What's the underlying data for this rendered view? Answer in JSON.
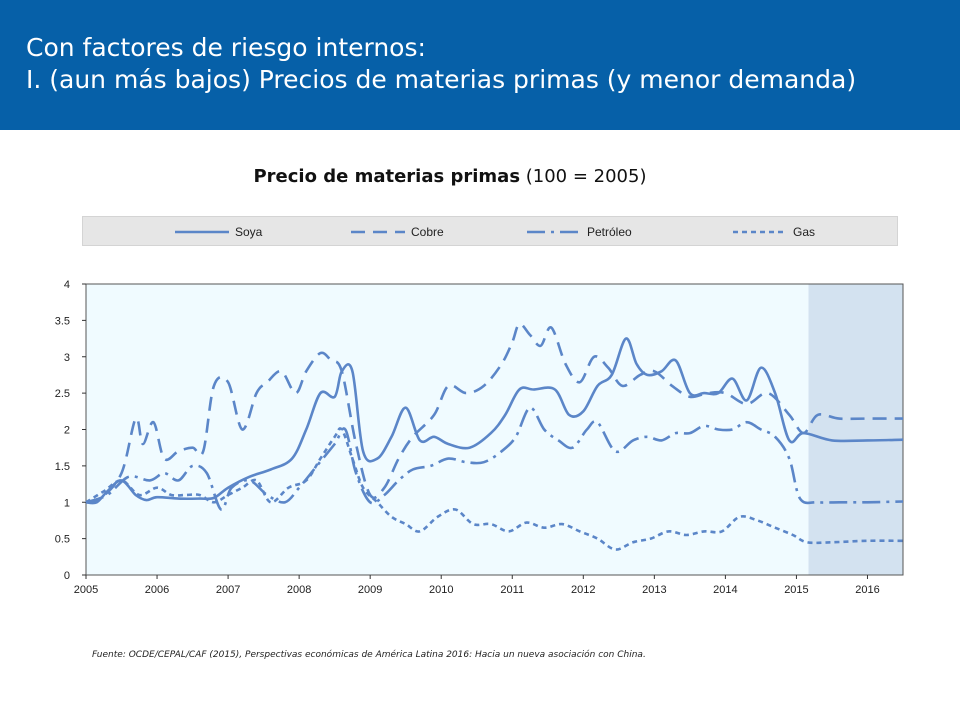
{
  "header": {
    "line1": "Con factores de riesgo internos:",
    "line2": "I. (aun más bajos) Precios de materias primas (y menor demanda)"
  },
  "chart_title": {
    "bold": "Precio de materias primas",
    "rest": " (100 = 2005)"
  },
  "source": "Fuente: OCDE/CEPAL/CAF (2015), Perspectivas económicas de América Latina 2016: Hacia un nueva asociación con China.",
  "colors": {
    "header_bg": "#0660a8",
    "series": "#5b86c8",
    "plot_bg": "#f0fbff",
    "projection_bg": "#d3e2f0"
  },
  "chart_data": {
    "type": "line",
    "title": "Precio de materias primas (100 = 2005)",
    "xlim": [
      2005,
      2016.5
    ],
    "ylim": [
      0,
      4
    ],
    "x_ticks": [
      "2005",
      "2006",
      "2007",
      "2008",
      "2009",
      "2010",
      "2011",
      "2012",
      "2013",
      "2014",
      "2015",
      "2016"
    ],
    "y_ticks": [
      "0",
      "0.5",
      "1",
      "1.5",
      "2",
      "2.5",
      "3",
      "3.5",
      "4"
    ],
    "projection_start": 2015.17,
    "legend_position": "top",
    "series": [
      {
        "name": "Soya",
        "style": "solid",
        "x": [
          2005,
          2005.15,
          2005.3,
          2005.5,
          2005.7,
          2005.85,
          2006,
          2006.3,
          2006.6,
          2006.8,
          2007,
          2007.3,
          2007.6,
          2007.9,
          2008.1,
          2008.3,
          2008.5,
          2008.6,
          2008.75,
          2008.9,
          2009.1,
          2009.3,
          2009.5,
          2009.7,
          2009.9,
          2010.1,
          2010.4,
          2010.7,
          2010.9,
          2011.1,
          2011.3,
          2011.6,
          2011.8,
          2012,
          2012.2,
          2012.4,
          2012.6,
          2012.75,
          2012.9,
          2013.1,
          2013.3,
          2013.5,
          2013.7,
          2013.9,
          2014.1,
          2014.3,
          2014.5,
          2014.7,
          2014.9,
          2015.1,
          2015.5,
          2016,
          2016.5
        ],
        "y": [
          1.0,
          1.0,
          1.15,
          1.3,
          1.1,
          1.03,
          1.07,
          1.05,
          1.05,
          1.06,
          1.2,
          1.35,
          1.45,
          1.6,
          2.0,
          2.5,
          2.45,
          2.8,
          2.8,
          1.7,
          1.6,
          1.9,
          2.3,
          1.85,
          1.9,
          1.8,
          1.75,
          1.95,
          2.2,
          2.55,
          2.55,
          2.55,
          2.2,
          2.25,
          2.6,
          2.75,
          3.25,
          2.9,
          2.75,
          2.8,
          2.95,
          2.5,
          2.5,
          2.5,
          2.7,
          2.4,
          2.85,
          2.5,
          1.85,
          1.95,
          1.85,
          1.85,
          1.86
        ]
      },
      {
        "name": "Cobre",
        "style": "dashed",
        "x": [
          2005,
          2005.2,
          2005.5,
          2005.7,
          2005.8,
          2005.95,
          2006.1,
          2006.3,
          2006.5,
          2006.65,
          2006.8,
          2007,
          2007.2,
          2007.4,
          2007.55,
          2007.75,
          2007.95,
          2008.1,
          2008.3,
          2008.45,
          2008.6,
          2008.8,
          2009,
          2009.2,
          2009.4,
          2009.6,
          2009.9,
          2010.1,
          2010.35,
          2010.6,
          2010.85,
          2011,
          2011.1,
          2011.25,
          2011.4,
          2011.55,
          2011.75,
          2011.95,
          2012.15,
          2012.35,
          2012.55,
          2012.8,
          2013,
          2013.25,
          2013.5,
          2013.75,
          2014,
          2014.3,
          2014.6,
          2014.9,
          2015.1,
          2015.3,
          2015.6,
          2016,
          2016.5
        ],
        "y": [
          1.0,
          1.05,
          1.4,
          2.15,
          1.8,
          2.1,
          1.6,
          1.7,
          1.75,
          1.7,
          2.6,
          2.65,
          2.0,
          2.5,
          2.65,
          2.8,
          2.5,
          2.8,
          3.05,
          2.95,
          2.8,
          1.8,
          1.1,
          1.2,
          1.6,
          1.9,
          2.2,
          2.6,
          2.5,
          2.6,
          2.9,
          3.2,
          3.45,
          3.3,
          3.15,
          3.4,
          2.9,
          2.65,
          3.0,
          2.85,
          2.6,
          2.75,
          2.8,
          2.6,
          2.45,
          2.5,
          2.5,
          2.35,
          2.5,
          2.2,
          1.95,
          2.2,
          2.15,
          2.15,
          2.15
        ]
      },
      {
        "name": "Petróleo",
        "style": "dashdot",
        "x": [
          2005,
          2005.3,
          2005.6,
          2005.9,
          2006.1,
          2006.3,
          2006.5,
          2006.7,
          2006.9,
          2007.05,
          2007.3,
          2007.55,
          2007.8,
          2008,
          2008.25,
          2008.5,
          2008.65,
          2008.8,
          2009,
          2009.2,
          2009.4,
          2009.6,
          2009.85,
          2010.1,
          2010.35,
          2010.6,
          2010.85,
          2011.05,
          2011.25,
          2011.45,
          2011.65,
          2011.85,
          2012.05,
          2012.2,
          2012.45,
          2012.7,
          2012.9,
          2013.1,
          2013.3,
          2013.5,
          2013.7,
          2013.9,
          2014.1,
          2014.3,
          2014.5,
          2014.7,
          2014.9,
          2015.05,
          2015.3,
          2015.6,
          2016,
          2016.5
        ],
        "y": [
          1.0,
          1.1,
          1.35,
          1.3,
          1.4,
          1.3,
          1.5,
          1.4,
          0.9,
          1.2,
          1.3,
          1.1,
          1.0,
          1.2,
          1.5,
          1.8,
          2.0,
          1.4,
          1.0,
          1.1,
          1.3,
          1.45,
          1.5,
          1.6,
          1.55,
          1.55,
          1.7,
          1.9,
          2.3,
          2.0,
          1.85,
          1.75,
          2.0,
          2.1,
          1.7,
          1.85,
          1.9,
          1.85,
          1.95,
          1.95,
          2.05,
          2.0,
          2.0,
          2.1,
          2.0,
          1.9,
          1.6,
          1.05,
          1.0,
          1.0,
          1.0,
          1.01
        ]
      },
      {
        "name": "Gas",
        "style": "shortdash",
        "x": [
          2005,
          2005.25,
          2005.5,
          2005.75,
          2006,
          2006.2,
          2006.4,
          2006.6,
          2006.8,
          2007,
          2007.2,
          2007.4,
          2007.6,
          2007.85,
          2008.1,
          2008.3,
          2008.5,
          2008.6,
          2008.75,
          2008.9,
          2009.1,
          2009.3,
          2009.5,
          2009.7,
          2009.95,
          2010.2,
          2010.45,
          2010.7,
          2010.95,
          2011.2,
          2011.45,
          2011.7,
          2011.95,
          2012.2,
          2012.45,
          2012.7,
          2012.95,
          2013.2,
          2013.45,
          2013.7,
          2013.95,
          2014.2,
          2014.45,
          2014.7,
          2014.95,
          2015.15,
          2015.5,
          2016,
          2016.5
        ],
        "y": [
          1.0,
          1.15,
          1.3,
          1.1,
          1.2,
          1.1,
          1.1,
          1.1,
          1.0,
          1.1,
          1.2,
          1.3,
          1.0,
          1.2,
          1.3,
          1.6,
          1.9,
          2.0,
          1.6,
          1.2,
          1.0,
          0.8,
          0.7,
          0.6,
          0.8,
          0.9,
          0.7,
          0.7,
          0.6,
          0.72,
          0.65,
          0.7,
          0.6,
          0.5,
          0.35,
          0.45,
          0.5,
          0.6,
          0.55,
          0.6,
          0.6,
          0.8,
          0.75,
          0.65,
          0.55,
          0.45,
          0.45,
          0.47,
          0.47
        ]
      }
    ]
  }
}
